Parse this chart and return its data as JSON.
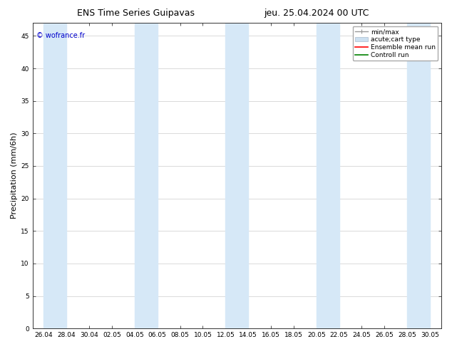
{
  "title_left": "ENS Time Series Guipavas",
  "title_right": "jeu. 25.04.2024 00 UTC",
  "ylabel": "Precipitation (mm/6h)",
  "watermark": "© wofrance.fr",
  "watermark_color": "#0000cc",
  "ylim": [
    0,
    47
  ],
  "yticks": [
    0,
    5,
    10,
    15,
    20,
    25,
    30,
    35,
    40,
    45
  ],
  "xtick_labels": [
    "26.04",
    "28.04",
    "30.04",
    "02.05",
    "04.05",
    "06.05",
    "08.05",
    "10.05",
    "12.05",
    "14.05",
    "16.05",
    "18.05",
    "20.05",
    "22.05",
    "24.05",
    "26.05",
    "28.05",
    "30.05"
  ],
  "band_color": "#d6e8f7",
  "background_color": "#ffffff",
  "grid_color": "#cccccc",
  "tick_label_fontsize": 6.5,
  "axis_label_fontsize": 8,
  "title_fontsize": 9,
  "watermark_fontsize": 7,
  "legend_fontsize": 6.5
}
